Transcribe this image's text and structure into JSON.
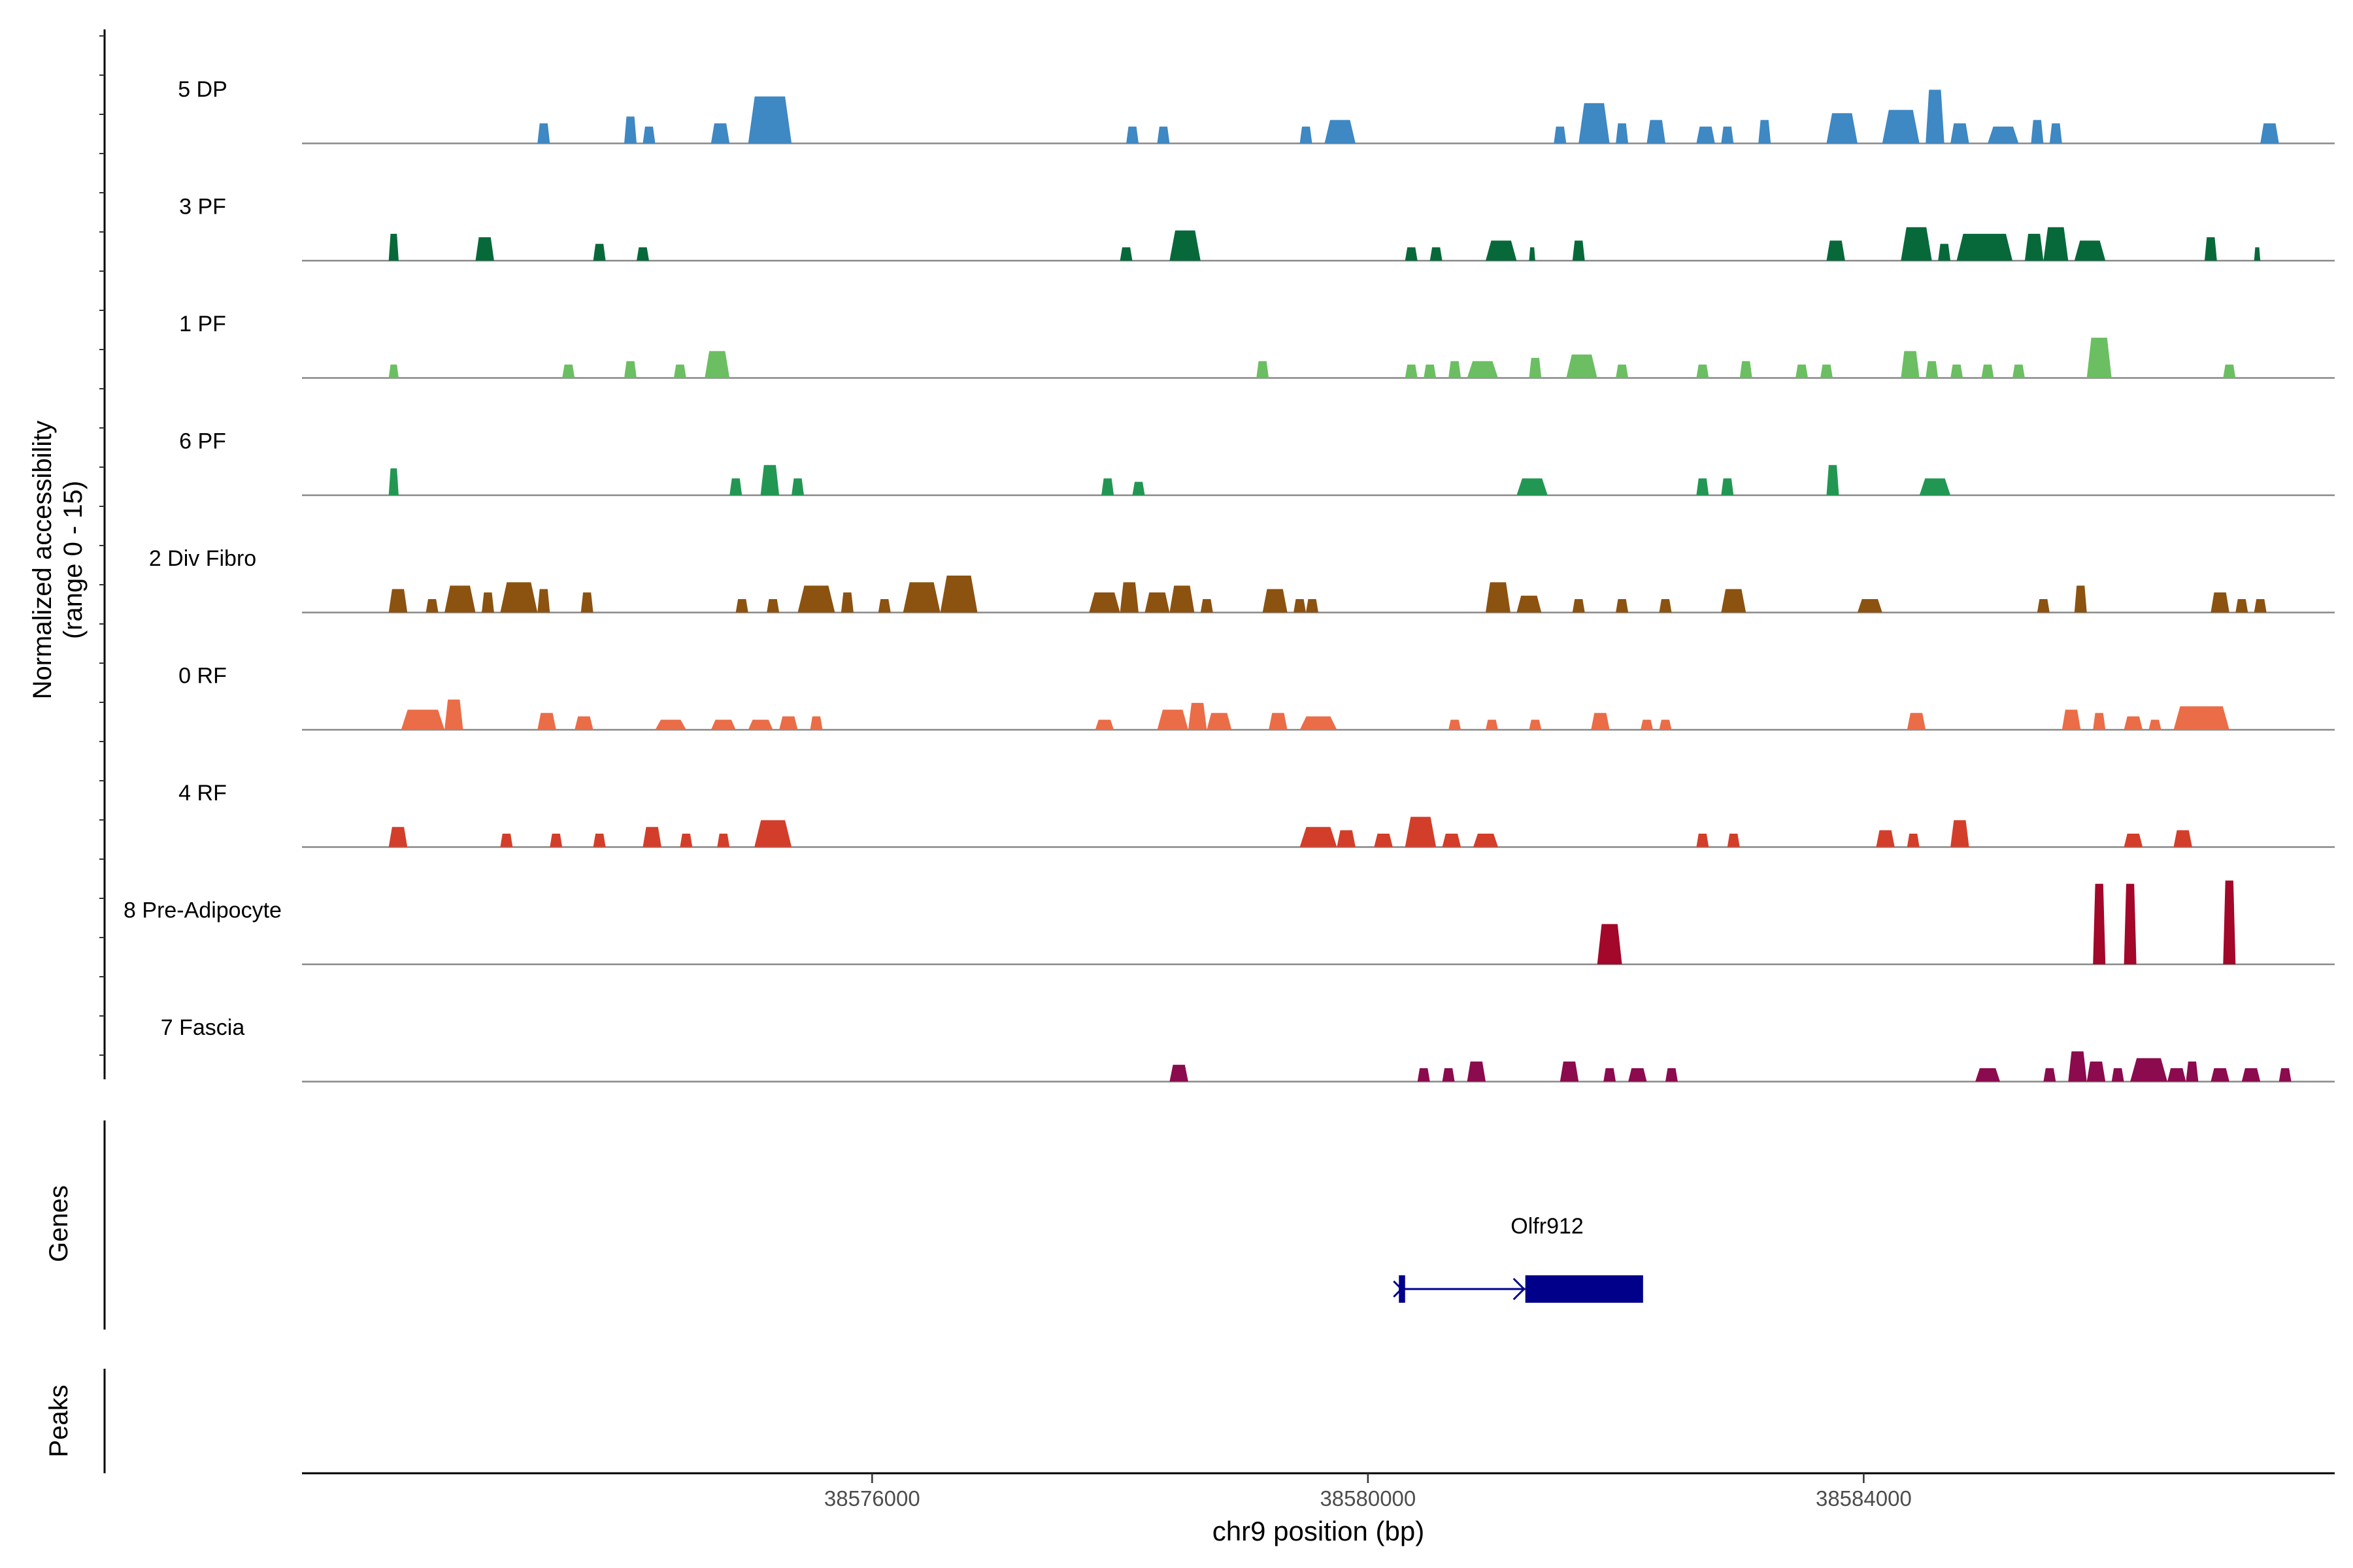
{
  "chart_data": {
    "type": "area",
    "ylabel": "Normalized accessibility\n(range 0 - 15)",
    "xlabel": "chr9 position (bp)",
    "chromosome": "chr9",
    "x_range": [
      38571400,
      38587800
    ],
    "y_range": [
      0,
      15
    ],
    "x_ticks": [
      {
        "value": 38576000,
        "label": "38576000"
      },
      {
        "value": 38580000,
        "label": "38580000"
      },
      {
        "value": 38584000,
        "label": "38584000"
      }
    ],
    "tracks": [
      {
        "name": "5 DP",
        "color": "#3E88C3",
        "peaks": [
          [
            38573300,
            38573400,
            3
          ],
          [
            38574000,
            38574100,
            4
          ],
          [
            38574150,
            38574250,
            2.5
          ],
          [
            38574700,
            38574850,
            3
          ],
          [
            38575000,
            38575350,
            7
          ],
          [
            38578050,
            38578150,
            2.5
          ],
          [
            38578300,
            38578400,
            2.5
          ],
          [
            38579450,
            38579550,
            2.5
          ],
          [
            38579650,
            38579900,
            3.5
          ],
          [
            38581500,
            38581600,
            2.5
          ],
          [
            38581700,
            38581950,
            6
          ],
          [
            38582000,
            38582100,
            3
          ],
          [
            38582250,
            38582400,
            3.5
          ],
          [
            38582650,
            38582800,
            2.5
          ],
          [
            38582850,
            38582950,
            2.5
          ],
          [
            38583150,
            38583250,
            3.5
          ],
          [
            38583700,
            38583950,
            4.5
          ],
          [
            38584150,
            38584450,
            5
          ],
          [
            38584500,
            38584650,
            8
          ],
          [
            38584700,
            38584850,
            3
          ],
          [
            38585000,
            38585250,
            2.5
          ],
          [
            38585350,
            38585450,
            3.5
          ],
          [
            38585500,
            38585600,
            3
          ],
          [
            38587200,
            38587350,
            3
          ]
        ]
      },
      {
        "name": "3 PF",
        "color": "#07693A",
        "peaks": [
          [
            38572100,
            38572180,
            4
          ],
          [
            38572800,
            38572950,
            3.5
          ],
          [
            38573750,
            38573850,
            2.5
          ],
          [
            38574100,
            38574200,
            2
          ],
          [
            38578000,
            38578100,
            2
          ],
          [
            38578400,
            38578650,
            4.5
          ],
          [
            38580300,
            38580400,
            2
          ],
          [
            38580500,
            38580600,
            2
          ],
          [
            38580950,
            38581200,
            3
          ],
          [
            38581300,
            38581350,
            2
          ],
          [
            38581650,
            38581750,
            3
          ],
          [
            38583700,
            38583850,
            3
          ],
          [
            38584300,
            38584550,
            5
          ],
          [
            38584600,
            38584700,
            2.5
          ],
          [
            38584750,
            38585200,
            4
          ],
          [
            38585300,
            38585450,
            4
          ],
          [
            38585450,
            38585650,
            5
          ],
          [
            38585700,
            38585950,
            3
          ],
          [
            38586750,
            38586850,
            3.5
          ],
          [
            38587150,
            38587200,
            2
          ]
        ]
      },
      {
        "name": "1 PF",
        "color": "#6BBF62",
        "peaks": [
          [
            38572100,
            38572180,
            2
          ],
          [
            38573500,
            38573600,
            2
          ],
          [
            38574000,
            38574100,
            2.5
          ],
          [
            38574400,
            38574500,
            2
          ],
          [
            38574650,
            38574850,
            4
          ],
          [
            38579100,
            38579200,
            2.5
          ],
          [
            38580300,
            38580400,
            2
          ],
          [
            38580450,
            38580550,
            2
          ],
          [
            38580650,
            38580750,
            2.5
          ],
          [
            38580800,
            38581050,
            2.5
          ],
          [
            38581300,
            38581400,
            3
          ],
          [
            38581600,
            38581850,
            3.5
          ],
          [
            38582000,
            38582100,
            2
          ],
          [
            38582650,
            38582750,
            2
          ],
          [
            38583000,
            38583100,
            2.5
          ],
          [
            38583450,
            38583550,
            2
          ],
          [
            38583650,
            38583750,
            2
          ],
          [
            38584300,
            38584450,
            4
          ],
          [
            38584500,
            38584600,
            2.5
          ],
          [
            38584700,
            38584800,
            2
          ],
          [
            38584950,
            38585050,
            2
          ],
          [
            38585200,
            38585300,
            2
          ],
          [
            38585800,
            38586000,
            6
          ],
          [
            38586900,
            38587000,
            2
          ]
        ]
      },
      {
        "name": "6 PF",
        "color": "#229753",
        "peaks": [
          [
            38572100,
            38572180,
            4
          ],
          [
            38574850,
            38574950,
            2.5
          ],
          [
            38575100,
            38575250,
            4.5
          ],
          [
            38575350,
            38575450,
            2.5
          ],
          [
            38577850,
            38577950,
            2.5
          ],
          [
            38578100,
            38578200,
            2
          ],
          [
            38581200,
            38581450,
            2.5
          ],
          [
            38582650,
            38582750,
            2.5
          ],
          [
            38582850,
            38582950,
            2.5
          ],
          [
            38583700,
            38583800,
            4.5
          ],
          [
            38584450,
            38584700,
            2.5
          ]
        ]
      },
      {
        "name": "2 Div Fibro",
        "color": "#8B5210",
        "peaks": [
          [
            38572100,
            38572250,
            3.5
          ],
          [
            38572400,
            38572500,
            2
          ],
          [
            38572550,
            38572800,
            4
          ],
          [
            38572850,
            38572950,
            3
          ],
          [
            38573000,
            38573300,
            4.5
          ],
          [
            38573300,
            38573400,
            3.5
          ],
          [
            38573650,
            38573750,
            3
          ],
          [
            38574900,
            38575000,
            2
          ],
          [
            38575150,
            38575250,
            2
          ],
          [
            38575400,
            38575700,
            4
          ],
          [
            38575750,
            38575850,
            3
          ],
          [
            38576050,
            38576150,
            2
          ],
          [
            38576250,
            38576550,
            4.5
          ],
          [
            38576550,
            38576850,
            5.5
          ],
          [
            38577750,
            38578000,
            3
          ],
          [
            38578000,
            38578150,
            4.5
          ],
          [
            38578200,
            38578400,
            3
          ],
          [
            38578400,
            38578600,
            4
          ],
          [
            38578650,
            38578750,
            2
          ],
          [
            38579150,
            38579350,
            3.5
          ],
          [
            38579400,
            38579500,
            2
          ],
          [
            38579500,
            38579600,
            2
          ],
          [
            38580950,
            38581150,
            4.5
          ],
          [
            38581200,
            38581400,
            2.5
          ],
          [
            38581650,
            38581750,
            2
          ],
          [
            38582000,
            38582100,
            2
          ],
          [
            38582350,
            38582450,
            2
          ],
          [
            38582850,
            38583050,
            3.5
          ],
          [
            38583950,
            38584150,
            2
          ],
          [
            38585400,
            38585500,
            2
          ],
          [
            38585700,
            38585800,
            4
          ],
          [
            38586800,
            38586950,
            3
          ],
          [
            38587000,
            38587100,
            2
          ],
          [
            38587150,
            38587250,
            2
          ]
        ]
      },
      {
        "name": "0 RF",
        "color": "#EA6D47",
        "peaks": [
          [
            38572200,
            38572550,
            3
          ],
          [
            38572550,
            38572700,
            4.5
          ],
          [
            38573300,
            38573450,
            2.5
          ],
          [
            38573600,
            38573750,
            2
          ],
          [
            38574250,
            38574500,
            1.5
          ],
          [
            38574700,
            38574900,
            1.5
          ],
          [
            38575000,
            38575200,
            1.5
          ],
          [
            38575250,
            38575400,
            2
          ],
          [
            38575500,
            38575600,
            2
          ],
          [
            38577800,
            38577950,
            1.5
          ],
          [
            38578300,
            38578550,
            3
          ],
          [
            38578550,
            38578700,
            4
          ],
          [
            38578700,
            38578900,
            2.5
          ],
          [
            38579200,
            38579350,
            2.5
          ],
          [
            38579450,
            38579750,
            2
          ],
          [
            38580650,
            38580750,
            1.5
          ],
          [
            38580950,
            38581050,
            1.5
          ],
          [
            38581300,
            38581400,
            1.5
          ],
          [
            38581800,
            38581950,
            2.5
          ],
          [
            38582200,
            38582300,
            1.5
          ],
          [
            38582350,
            38582450,
            1.5
          ],
          [
            38584350,
            38584500,
            2.5
          ],
          [
            38585600,
            38585750,
            3
          ],
          [
            38585850,
            38585950,
            2.5
          ],
          [
            38586100,
            38586250,
            2
          ],
          [
            38586300,
            38586400,
            1.5
          ],
          [
            38586500,
            38586950,
            3.5
          ]
        ]
      },
      {
        "name": "4 RF",
        "color": "#D33E2A",
        "peaks": [
          [
            38572100,
            38572250,
            3
          ],
          [
            38573000,
            38573100,
            2
          ],
          [
            38573400,
            38573500,
            2
          ],
          [
            38573750,
            38573850,
            2
          ],
          [
            38574150,
            38574300,
            3
          ],
          [
            38574450,
            38574550,
            2
          ],
          [
            38574750,
            38574850,
            2
          ],
          [
            38575050,
            38575350,
            4
          ],
          [
            38579450,
            38579750,
            3
          ],
          [
            38579750,
            38579900,
            2.5
          ],
          [
            38580050,
            38580200,
            2
          ],
          [
            38580300,
            38580550,
            4.5
          ],
          [
            38580600,
            38580750,
            2
          ],
          [
            38580850,
            38581050,
            2
          ],
          [
            38582650,
            38582750,
            2
          ],
          [
            38582900,
            38583000,
            2
          ],
          [
            38584100,
            38584250,
            2.5
          ],
          [
            38584350,
            38584450,
            2
          ],
          [
            38584700,
            38584850,
            4
          ],
          [
            38586100,
            38586250,
            2
          ],
          [
            38586500,
            38586650,
            2.5
          ]
        ]
      },
      {
        "name": "8 Pre-Adipocyte",
        "color": "#A3072A",
        "peaks": [
          [
            38581850,
            38582050,
            6
          ],
          [
            38585850,
            38585950,
            12
          ],
          [
            38586100,
            38586200,
            12
          ],
          [
            38586900,
            38587000,
            12.5
          ]
        ]
      },
      {
        "name": "7 Fascia",
        "color": "#8B0B4E",
        "peaks": [
          [
            38578400,
            38578550,
            2.5
          ],
          [
            38580400,
            38580500,
            2
          ],
          [
            38580600,
            38580700,
            2
          ],
          [
            38580800,
            38580950,
            3
          ],
          [
            38581550,
            38581700,
            3
          ],
          [
            38581900,
            38582000,
            2
          ],
          [
            38582100,
            38582250,
            2
          ],
          [
            38582400,
            38582500,
            2
          ],
          [
            38584900,
            38585100,
            2
          ],
          [
            38585450,
            38585550,
            2
          ],
          [
            38585650,
            38585800,
            4.5
          ],
          [
            38585800,
            38585950,
            3
          ],
          [
            38586000,
            38586100,
            2
          ],
          [
            38586150,
            38586450,
            3.5
          ],
          [
            38586450,
            38586600,
            2
          ],
          [
            38586600,
            38586700,
            3
          ],
          [
            38586800,
            38586950,
            2
          ],
          [
            38587050,
            38587200,
            2
          ],
          [
            38587350,
            38587450,
            2
          ]
        ]
      }
    ],
    "genes": [
      {
        "name": "Olfr912",
        "color": "#00008B",
        "strand": "+",
        "tss": 38580250,
        "exon1": [
          38580250,
          38580300
        ],
        "exon2": [
          38581270,
          38582220
        ],
        "end": 38582220
      }
    ],
    "genes_label": "Genes",
    "peaks_label": "Peaks"
  }
}
